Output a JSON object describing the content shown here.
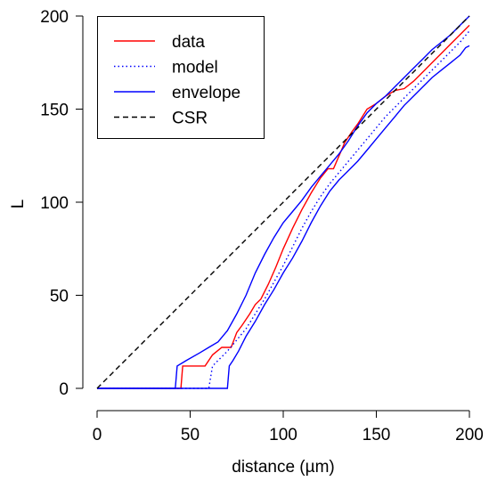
{
  "chart_data": {
    "type": "line",
    "title": "",
    "xlabel": "distance (µm)",
    "ylabel": "L",
    "xlim": [
      0,
      200
    ],
    "ylim": [
      0,
      200
    ],
    "x_ticks": [
      0,
      50,
      100,
      150,
      200
    ],
    "y_ticks": [
      0,
      50,
      100,
      150,
      200
    ],
    "x_tick_labels": [
      "0",
      "50",
      "100",
      "150",
      "200"
    ],
    "y_tick_labels": [
      "0",
      "50",
      "100",
      "150",
      "200"
    ],
    "legend_position": "top-left",
    "legend": [
      {
        "label": "data",
        "color": "#ff0000",
        "style": "solid"
      },
      {
        "label": "model",
        "color": "#0000ff",
        "style": "dotted"
      },
      {
        "label": "envelope",
        "color": "#0000ff",
        "style": "solid"
      },
      {
        "label": "CSR",
        "color": "#000000",
        "style": "dashed"
      }
    ],
    "series": [
      {
        "name": "data",
        "color": "#ff0000",
        "style": "solid",
        "x": [
          0,
          45,
          46,
          58,
          62,
          67,
          72,
          75,
          78,
          82,
          85,
          88,
          92,
          96,
          100,
          105,
          110,
          115,
          120,
          124,
          127,
          130,
          133,
          137,
          140,
          145,
          150,
          155,
          160,
          165,
          170,
          175,
          180,
          185,
          190,
          195,
          200
        ],
        "y": [
          0,
          0,
          12,
          12,
          18,
          22,
          22,
          30,
          34,
          40,
          45,
          48,
          56,
          65,
          75,
          86,
          96,
          105,
          113,
          118,
          118,
          125,
          132,
          138,
          142,
          150,
          153,
          157,
          160,
          161,
          165,
          170,
          175,
          180,
          185,
          190,
          195
        ]
      },
      {
        "name": "model",
        "color": "#0000ff",
        "style": "dotted",
        "x": [
          0,
          60,
          62,
          66,
          70,
          75,
          80,
          85,
          90,
          95,
          100,
          105,
          110,
          115,
          120,
          125,
          130,
          135,
          140,
          145,
          150,
          155,
          160,
          165,
          170,
          175,
          180,
          185,
          190,
          195,
          200
        ],
        "y": [
          0,
          0,
          12,
          16,
          20,
          26,
          32,
          40,
          48,
          57,
          66,
          76,
          86,
          95,
          103,
          110,
          116,
          122,
          128,
          134,
          140,
          146,
          151,
          156,
          161,
          166,
          171,
          176,
          181,
          186,
          192
        ]
      },
      {
        "name": "envelope upper",
        "color": "#0000ff",
        "style": "solid",
        "x": [
          0,
          42,
          43,
          48,
          55,
          60,
          65,
          70,
          75,
          80,
          85,
          90,
          95,
          100,
          105,
          110,
          115,
          120,
          125,
          130,
          135,
          140,
          145,
          150,
          155,
          160,
          165,
          170,
          175,
          180,
          185,
          190,
          195,
          200
        ],
        "y": [
          0,
          0,
          12,
          15,
          19,
          22,
          25,
          31,
          40,
          50,
          62,
          72,
          81,
          89,
          95,
          101,
          108,
          114,
          120,
          126,
          133,
          141,
          148,
          153,
          157,
          162,
          167,
          172,
          177,
          182,
          186,
          190,
          195,
          200
        ]
      },
      {
        "name": "envelope lower",
        "color": "#0000ff",
        "style": "solid",
        "x": [
          0,
          70,
          71,
          73,
          76,
          80,
          85,
          90,
          95,
          100,
          105,
          110,
          115,
          120,
          125,
          130,
          135,
          140,
          145,
          150,
          155,
          160,
          165,
          170,
          175,
          180,
          185,
          190,
          195,
          198,
          200
        ],
        "y": [
          0,
          0,
          12,
          15,
          20,
          28,
          36,
          45,
          53,
          62,
          70,
          79,
          89,
          98,
          106,
          112,
          117,
          122,
          128,
          134,
          140,
          146,
          152,
          157,
          162,
          167,
          171,
          175,
          179,
          183,
          184
        ]
      },
      {
        "name": "CSR",
        "color": "#000000",
        "style": "dashed",
        "x": [
          0,
          200
        ],
        "y": [
          0,
          200
        ]
      }
    ]
  }
}
